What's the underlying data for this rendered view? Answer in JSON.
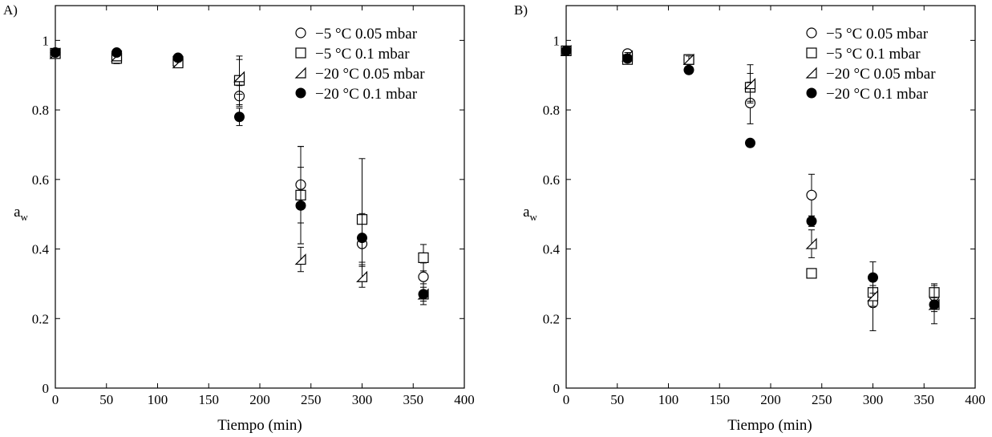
{
  "chart_data": [
    {
      "type": "scatter",
      "panel_label": "A)",
      "xlabel": "Tiempo (min)",
      "ylabel": "a",
      "ylabel_subscript": "w",
      "xlim": [
        0,
        400
      ],
      "ylim": [
        0,
        1.1
      ],
      "xticks": [
        "0",
        "50",
        "100",
        "150",
        "200",
        "250",
        "300",
        "350",
        "400"
      ],
      "yticks": [
        "0",
        "0.2",
        "0.4",
        "0.6",
        "0.8",
        "1"
      ],
      "legend_position": "top-right",
      "series": [
        {
          "name": "−5 °C 0.05 mbar",
          "marker": "circle-open",
          "x": [
            0,
            60,
            120,
            180,
            240,
            300,
            360
          ],
          "y": [
            0.965,
            0.962,
            0.945,
            0.84,
            0.585,
            0.415,
            0.32
          ],
          "err": [
            0.005,
            0.01,
            0.01,
            0.03,
            0.11,
            0.06,
            0.04
          ]
        },
        {
          "name": "−5 °C 0.1 mbar",
          "marker": "square-open",
          "x": [
            0,
            60,
            120,
            180,
            240,
            300,
            360
          ],
          "y": [
            0.963,
            0.948,
            0.94,
            0.885,
            0.555,
            0.485,
            0.375
          ],
          "err": [
            0.005,
            0.015,
            0.01,
            0.07,
            0.14,
            0.175,
            0.038
          ]
        },
        {
          "name": "−20 °C 0.05 mbar",
          "marker": "triangle-open",
          "x": [
            0,
            60,
            120,
            180,
            240,
            300,
            360
          ],
          "y": [
            0.962,
            0.955,
            0.935,
            0.895,
            0.37,
            0.32,
            0.27
          ],
          "err": [
            0.005,
            0.01,
            0.008,
            0.05,
            0.035,
            0.03,
            0.02
          ]
        },
        {
          "name": "−20 °C 0.1 mbar",
          "marker": "circle-filled",
          "x": [
            0,
            60,
            120,
            180,
            240,
            300,
            360
          ],
          "y": [
            0.965,
            0.965,
            0.95,
            0.78,
            0.525,
            0.432,
            0.27
          ],
          "err": [
            0.005,
            0.008,
            0.008,
            0.025,
            0.11,
            0.07,
            0.03
          ]
        }
      ]
    },
    {
      "type": "scatter",
      "panel_label": "B)",
      "xlabel": "Tiempo (min)",
      "ylabel": "a",
      "ylabel_subscript": "w",
      "xlim": [
        0,
        400
      ],
      "ylim": [
        0,
        1.1
      ],
      "xticks": [
        "0",
        "50",
        "100",
        "150",
        "200",
        "250",
        "300",
        "350",
        "400"
      ],
      "yticks": [
        "0",
        "0.2",
        "0.4",
        "0.6",
        "0.8",
        "1"
      ],
      "legend_position": "top-right",
      "series": [
        {
          "name": "−5 °C 0.05 mbar",
          "marker": "circle-open",
          "x": [
            0,
            60,
            120,
            180,
            240,
            300,
            360
          ],
          "y": [
            0.97,
            0.962,
            0.945,
            0.82,
            0.555,
            0.245,
            0.265
          ],
          "err": [
            0.005,
            0.01,
            0.01,
            0.06,
            0.06,
            0.08,
            0.02
          ]
        },
        {
          "name": "−5 °C 0.1 mbar",
          "marker": "square-open",
          "x": [
            0,
            60,
            120,
            180,
            240,
            300,
            360
          ],
          "y": [
            0.97,
            0.945,
            0.945,
            0.865,
            0.33,
            0.275,
            0.275
          ],
          "err": [
            0.005,
            0.01,
            0.012,
            0.04,
            0.012,
            0.04,
            0.025
          ]
        },
        {
          "name": "−20 °C 0.05 mbar",
          "marker": "triangle-open",
          "x": [
            0,
            60,
            120,
            180,
            240,
            300,
            360
          ],
          "y": [
            0.97,
            0.955,
            0.945,
            0.875,
            0.415,
            0.265,
            0.24
          ],
          "err": [
            0.005,
            0.01,
            0.01,
            0.055,
            0.04,
            0.03,
            0.055
          ]
        },
        {
          "name": "−20 °C 0.1 mbar",
          "marker": "circle-filled",
          "x": [
            0,
            60,
            120,
            180,
            240,
            300,
            360
          ],
          "y": [
            0.97,
            0.948,
            0.915,
            0.705,
            0.48,
            0.318,
            0.24
          ],
          "err": [
            0.005,
            0.01,
            0.008,
            0.008,
            0.015,
            0.045,
            0.02
          ]
        }
      ]
    }
  ]
}
